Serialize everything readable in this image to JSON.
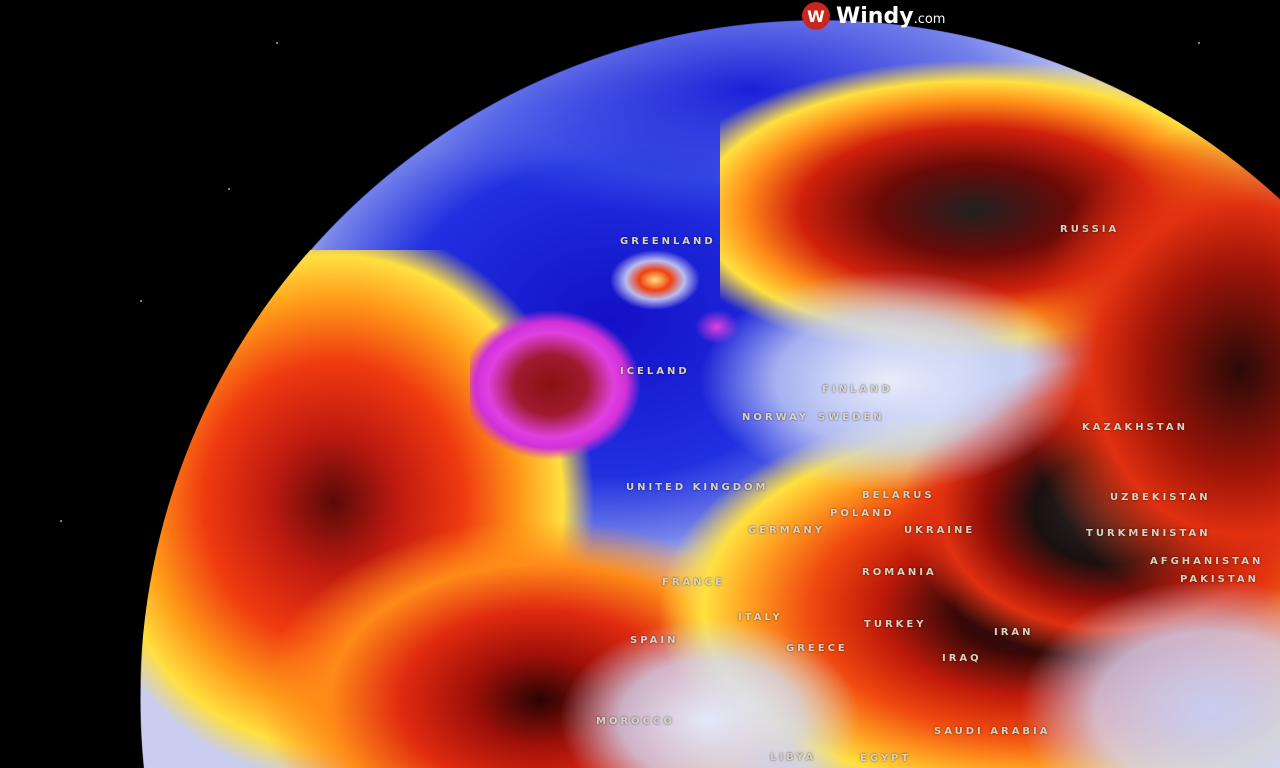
{
  "brand": {
    "name": "Windy",
    "tld": ".com",
    "accent": "#c8261e"
  },
  "map": {
    "type": "globe temperature anomaly view",
    "colors": {
      "cold": "#1a1ad6",
      "extreme_cold": "#e040e0",
      "neutral": "#e8ecfa",
      "warm": "#ffe030",
      "hot": "#e02010",
      "extreme_hot": "#1a1a1a"
    },
    "labels": [
      "GREENLAND",
      "RUSSIA",
      "ICELAND",
      "FINLAND",
      "NORWAY",
      "SWEDEN",
      "UNITED KINGDOM",
      "BELARUS",
      "POLAND",
      "GERMANY",
      "UKRAINE",
      "KAZAKHSTAN",
      "UZBEKISTAN",
      "TURKMENISTAN",
      "AFGHANISTAN",
      "PAKISTAN",
      "ROMANIA",
      "FRANCE",
      "ITALY",
      "SPAIN",
      "GREECE",
      "TURKEY",
      "IRAN",
      "IRAQ",
      "MOROCCO",
      "SAUDI ARABIA",
      "EGYPT",
      "LIBYA"
    ]
  }
}
